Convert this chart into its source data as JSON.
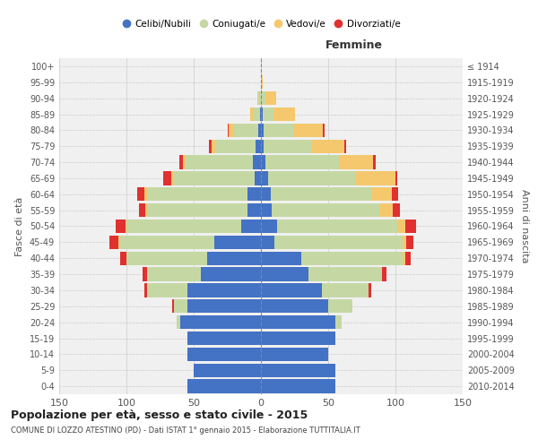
{
  "age_groups": [
    "0-4",
    "5-9",
    "10-14",
    "15-19",
    "20-24",
    "25-29",
    "30-34",
    "35-39",
    "40-44",
    "45-49",
    "50-54",
    "55-59",
    "60-64",
    "65-69",
    "70-74",
    "75-79",
    "80-84",
    "85-89",
    "90-94",
    "95-99",
    "100+"
  ],
  "birth_years": [
    "2010-2014",
    "2005-2009",
    "2000-2004",
    "1995-1999",
    "1990-1994",
    "1985-1989",
    "1980-1984",
    "1975-1979",
    "1970-1974",
    "1965-1969",
    "1960-1964",
    "1955-1959",
    "1950-1954",
    "1945-1949",
    "1940-1944",
    "1935-1939",
    "1930-1934",
    "1925-1929",
    "1920-1924",
    "1915-1919",
    "≤ 1914"
  ],
  "males": {
    "celibi": [
      55,
      50,
      55,
      55,
      60,
      55,
      55,
      45,
      40,
      35,
      15,
      10,
      10,
      5,
      6,
      4,
      2,
      1,
      0,
      0,
      0
    ],
    "coniugati": [
      0,
      0,
      0,
      0,
      3,
      10,
      30,
      40,
      60,
      70,
      85,
      75,
      75,
      60,
      50,
      30,
      18,
      5,
      2,
      0,
      0
    ],
    "vedovi": [
      0,
      0,
      0,
      0,
      0,
      0,
      0,
      0,
      0,
      1,
      1,
      1,
      2,
      2,
      2,
      3,
      4,
      2,
      1,
      0,
      0
    ],
    "divorziati": [
      0,
      0,
      0,
      0,
      0,
      1,
      2,
      3,
      5,
      7,
      7,
      5,
      5,
      6,
      3,
      2,
      1,
      0,
      0,
      0,
      0
    ]
  },
  "females": {
    "nubili": [
      55,
      55,
      50,
      55,
      55,
      50,
      45,
      35,
      30,
      10,
      12,
      8,
      7,
      5,
      3,
      2,
      2,
      1,
      0,
      0,
      0
    ],
    "coniugate": [
      0,
      0,
      0,
      0,
      5,
      18,
      35,
      55,
      75,
      95,
      90,
      80,
      75,
      65,
      55,
      35,
      22,
      8,
      3,
      0,
      0
    ],
    "vedove": [
      0,
      0,
      0,
      0,
      0,
      0,
      0,
      0,
      2,
      3,
      5,
      10,
      15,
      30,
      25,
      25,
      22,
      16,
      8,
      1,
      0
    ],
    "divorziate": [
      0,
      0,
      0,
      0,
      0,
      0,
      2,
      3,
      4,
      5,
      8,
      5,
      5,
      1,
      2,
      1,
      1,
      0,
      0,
      0,
      0
    ]
  },
  "color_celibi": "#4472c4",
  "color_coniugati": "#c5d8a4",
  "color_vedovi": "#f5c86e",
  "color_divorziati": "#e03030",
  "xlim": 150,
  "title": "Popolazione per età, sesso e stato civile - 2015",
  "subtitle": "COMUNE DI LOZZO ATESTINO (PD) - Dati ISTAT 1° gennaio 2015 - Elaborazione TUTTITALIA.IT",
  "ylabel_left": "Fasce di età",
  "ylabel_right": "Anni di nascita",
  "label_femmine": "Femmine",
  "legend_labels": [
    "Celibi/Nubili",
    "Coniugati/e",
    "Vedovi/e",
    "Divorziati/e"
  ],
  "bg_color": "#f0f0f0"
}
